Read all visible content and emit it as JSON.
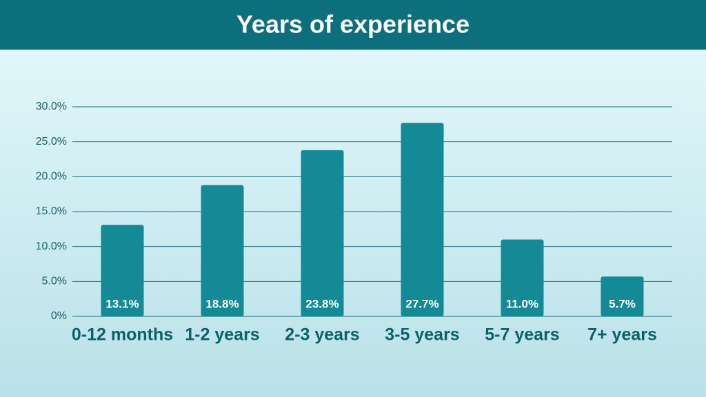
{
  "chart_data": {
    "type": "bar",
    "title": "Years of experience",
    "categories": [
      "0-12 months",
      "1-2 years",
      "2-3 years",
      "3-5 years",
      "5-7 years",
      "7+ years"
    ],
    "values": [
      13.1,
      18.8,
      23.8,
      27.7,
      11.0,
      5.7
    ],
    "value_labels": [
      "13.1%",
      "18.8%",
      "23.8%",
      "27.7%",
      "11.0%",
      "5.7%"
    ],
    "color": "#138a96",
    "ylim": [
      0,
      30
    ],
    "yticks": [
      {
        "value": 0,
        "label": "0%"
      },
      {
        "value": 5,
        "label": "5.0%"
      },
      {
        "value": 10,
        "label": "10.0%"
      },
      {
        "value": 15,
        "label": "15.0%"
      },
      {
        "value": 20,
        "label": "20.0%"
      },
      {
        "value": 25,
        "label": "25.0%"
      },
      {
        "value": 30,
        "label": "30.0%"
      }
    ],
    "grid": true
  }
}
